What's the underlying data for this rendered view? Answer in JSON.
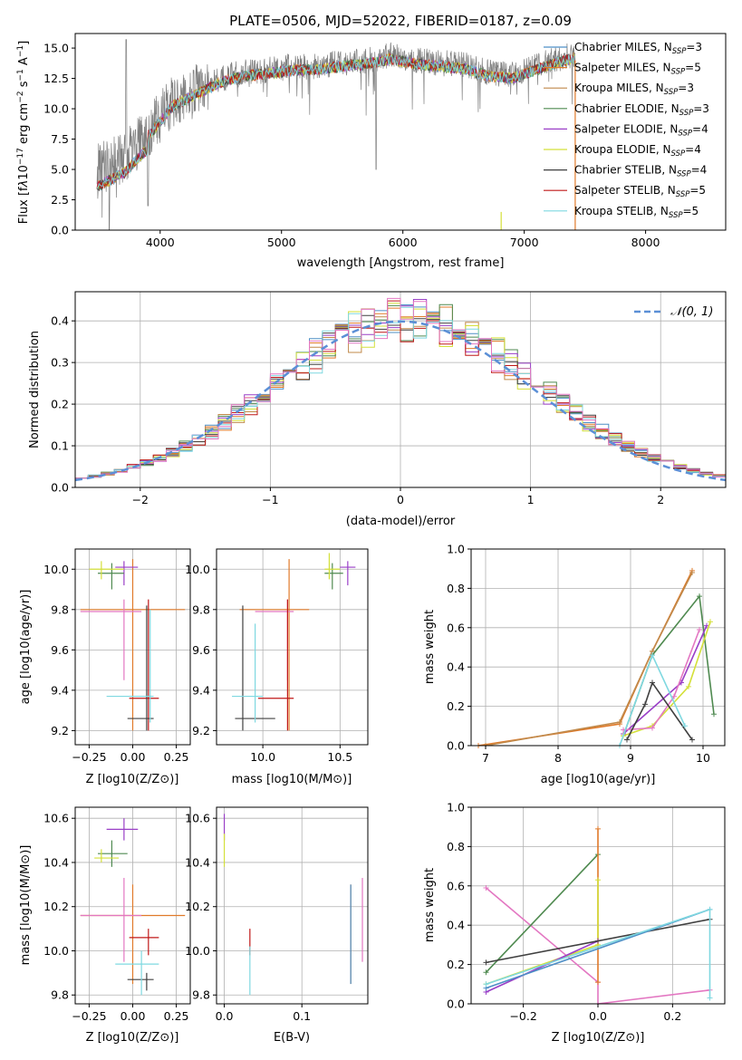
{
  "chart_data": [
    {
      "id": "spectrum",
      "type": "line",
      "title": "PLATE=0506, MJD=52022, FIBERID=0187, z=0.09",
      "xlabel": "wavelength [Angstrom, rest frame]",
      "ylabel": "Flux [f_λ 10^-17 erg cm^-2 s^-1 A^-1]",
      "xlim": [
        3300,
        8660
      ],
      "ylim": [
        0,
        16.2
      ],
      "xticks": [
        "4000",
        "5000",
        "6000",
        "7000",
        "8000"
      ],
      "yticks": [
        "0.0",
        "2.5",
        "5.0",
        "7.5",
        "10.0",
        "12.5",
        "15.0"
      ],
      "data_series": {
        "name": "",
        "color": "#808080",
        "x": [
          3500,
          3700,
          3900,
          4100,
          4300,
          4500,
          4700,
          4900,
          5100,
          5300,
          5500,
          5700,
          5900,
          6100,
          6300,
          6500,
          6700,
          6900,
          7100,
          7300,
          7420
        ],
        "y": [
          5.0,
          6.0,
          8.0,
          10.5,
          11.5,
          12.5,
          13.0,
          13.2,
          13.5,
          13.5,
          13.8,
          14.0,
          14.4,
          14.0,
          13.8,
          13.6,
          13.0,
          12.8,
          13.5,
          14.2,
          14.5
        ]
      },
      "model_series": [
        {
          "name": "Chabrier MILES",
          "nssp": "3",
          "color": "#4e8fc6"
        },
        {
          "name": "Salpeter MILES",
          "nssp": "5",
          "color": "#e07a2a"
        },
        {
          "name": "Kroupa MILES",
          "nssp": "3",
          "color": "#c0894a"
        },
        {
          "name": "Chabrier ELODIE",
          "nssp": "3",
          "color": "#4f8a50"
        },
        {
          "name": "Salpeter ELODIE",
          "nssp": "4",
          "color": "#9a3fc7"
        },
        {
          "name": "Kroupa ELODIE",
          "nssp": "4",
          "color": "#d4e03a"
        },
        {
          "name": "Chabrier STELIB",
          "nssp": "4",
          "color": "#404040"
        },
        {
          "name": "Salpeter STELIB",
          "nssp": "5",
          "color": "#c01818"
        },
        {
          "name": "Kroupa STELIB",
          "nssp": "5",
          "color": "#7fd8e0"
        }
      ],
      "legend_placement": "right"
    },
    {
      "id": "residuals",
      "type": "histogram",
      "xlabel": "(data-model)/error",
      "ylabel": "Normed distribution",
      "xlim": [
        -2.5,
        2.5
      ],
      "ylim": [
        0,
        0.47
      ],
      "xticks": [
        "−2",
        "−1",
        "0",
        "1",
        "2"
      ],
      "yticks": [
        "0.0",
        "0.1",
        "0.2",
        "0.3",
        "0.4"
      ],
      "reference_curve": {
        "label": "𝒩(0, 1)",
        "color": "#5b8fd6",
        "style": "dashed"
      },
      "grid": true,
      "legend_placement": "top-right"
    },
    {
      "id": "z-age",
      "type": "scatter",
      "xlabel": "Z [log10(Z/Z⊙)]",
      "ylabel": "age  [log10(age/yr)]",
      "xlim": [
        -0.33,
        0.33
      ],
      "ylim": [
        9.13,
        10.1
      ],
      "xticks": [
        "−0.25",
        "0.00",
        "0.25"
      ],
      "yticks": [
        "9.2",
        "9.4",
        "9.6",
        "9.8",
        "10.0"
      ],
      "grid": true
    },
    {
      "id": "mass-age",
      "type": "scatter",
      "xlabel": "mass [log10(M/M⊙)]",
      "ylabel": "",
      "xlim": [
        9.7,
        10.68
      ],
      "ylim": [
        9.13,
        10.1
      ],
      "xticks": [
        "10.0",
        "10.5"
      ],
      "yticks": [
        "9.2",
        "9.4",
        "9.6",
        "9.8",
        "10.0"
      ],
      "grid": true
    },
    {
      "id": "age-weight",
      "type": "line",
      "xlabel": "age  [log10(age/yr)]",
      "ylabel": "mass weight",
      "xlim": [
        6.8,
        10.3
      ],
      "ylim": [
        0,
        1.0
      ],
      "xticks": [
        "7",
        "8",
        "9",
        "10"
      ],
      "yticks": [
        "0.0",
        "0.2",
        "0.4",
        "0.6",
        "0.8",
        "1.0"
      ],
      "grid": true,
      "series": [
        {
          "color": "#e07a2a",
          "x": [
            6.9,
            8.85,
            9.3,
            9.85
          ],
          "y": [
            0.0,
            0.11,
            0.48,
            0.89
          ]
        },
        {
          "color": "#c0894a",
          "x": [
            7.0,
            8.85,
            9.3,
            9.85
          ],
          "y": [
            0.0,
            0.12,
            0.48,
            0.88
          ]
        },
        {
          "color": "#4f8a50",
          "x": [
            8.9,
            9.3,
            9.95,
            10.15
          ],
          "y": [
            0.05,
            0.46,
            0.76,
            0.16
          ]
        },
        {
          "color": "#9a3fc7",
          "x": [
            8.9,
            9.7,
            10.05
          ],
          "y": [
            0.06,
            0.32,
            0.61
          ]
        },
        {
          "color": "#d4e03a",
          "x": [
            8.9,
            9.3,
            9.8,
            10.1
          ],
          "y": [
            0.05,
            0.1,
            0.3,
            0.63
          ]
        },
        {
          "color": "#e377c2",
          "x": [
            8.9,
            9.3,
            9.6,
            9.95
          ],
          "y": [
            0.08,
            0.09,
            0.25,
            0.59
          ]
        },
        {
          "color": "#404040",
          "x": [
            8.95,
            9.2,
            9.3,
            9.85
          ],
          "y": [
            0.03,
            0.21,
            0.32,
            0.03
          ]
        },
        {
          "color": "#7fd8e0",
          "x": [
            8.85,
            9.3,
            9.75
          ],
          "y": [
            0.0,
            0.46,
            0.1
          ]
        }
      ]
    },
    {
      "id": "z-mass",
      "type": "scatter",
      "xlabel": "Z [log10(Z/Z⊙)]",
      "ylabel": "mass [log10(M/M⊙)]",
      "xlim": [
        -0.33,
        0.33
      ],
      "ylim": [
        9.76,
        10.65
      ],
      "xticks": [
        "−0.25",
        "0.00",
        "0.25"
      ],
      "yticks": [
        "9.8",
        "10.0",
        "10.2",
        "10.4",
        "10.6"
      ],
      "grid": true
    },
    {
      "id": "ebv-mass",
      "type": "scatter",
      "xlabel": "E(B-V)",
      "ylabel": "",
      "xlim": [
        -0.01,
        0.185
      ],
      "ylim": [
        9.76,
        10.65
      ],
      "xticks": [
        "0.0",
        "0.1"
      ],
      "yticks": [
        "9.8",
        "10.0",
        "10.2",
        "10.4",
        "10.6"
      ],
      "grid": true
    },
    {
      "id": "z-weight",
      "type": "line",
      "xlabel": "Z [log10(Z/Z⊙)]",
      "ylabel": "mass weight",
      "xlim": [
        -0.34,
        0.34
      ],
      "ylim": [
        0,
        1.0
      ],
      "xticks": [
        "−0.2",
        "0.0",
        "0.2"
      ],
      "yticks": [
        "0.0",
        "0.2",
        "0.4",
        "0.6",
        "0.8",
        "1.0"
      ],
      "grid": true,
      "series": [
        {
          "color": "#e377c2",
          "x": [
            -0.3,
            0.0,
            0.0,
            0.3
          ],
          "y": [
            0.59,
            0.11,
            0.0,
            0.07
          ]
        },
        {
          "color": "#4f8a50",
          "x": [
            -0.3,
            0.0
          ],
          "y": [
            0.16,
            0.76
          ]
        },
        {
          "color": "#e07a2a",
          "x": [
            0.0,
            0.0
          ],
          "y": [
            0.11,
            0.89
          ]
        },
        {
          "color": "#d4e03a",
          "x": [
            -0.3,
            0.0,
            0.0
          ],
          "y": [
            0.1,
            0.3,
            0.63
          ]
        },
        {
          "color": "#9a3fc7",
          "x": [
            -0.3,
            0.0
          ],
          "y": [
            0.06,
            0.32
          ]
        },
        {
          "color": "#404040",
          "x": [
            -0.3,
            0.3
          ],
          "y": [
            0.21,
            0.43
          ]
        },
        {
          "color": "#4e8fc6",
          "x": [
            -0.3,
            0.3
          ],
          "y": [
            0.08,
            0.48
          ]
        },
        {
          "color": "#7fd8e0",
          "x": [
            -0.3,
            0.3,
            0.3
          ],
          "y": [
            0.1,
            0.48,
            0.03
          ]
        }
      ]
    }
  ]
}
